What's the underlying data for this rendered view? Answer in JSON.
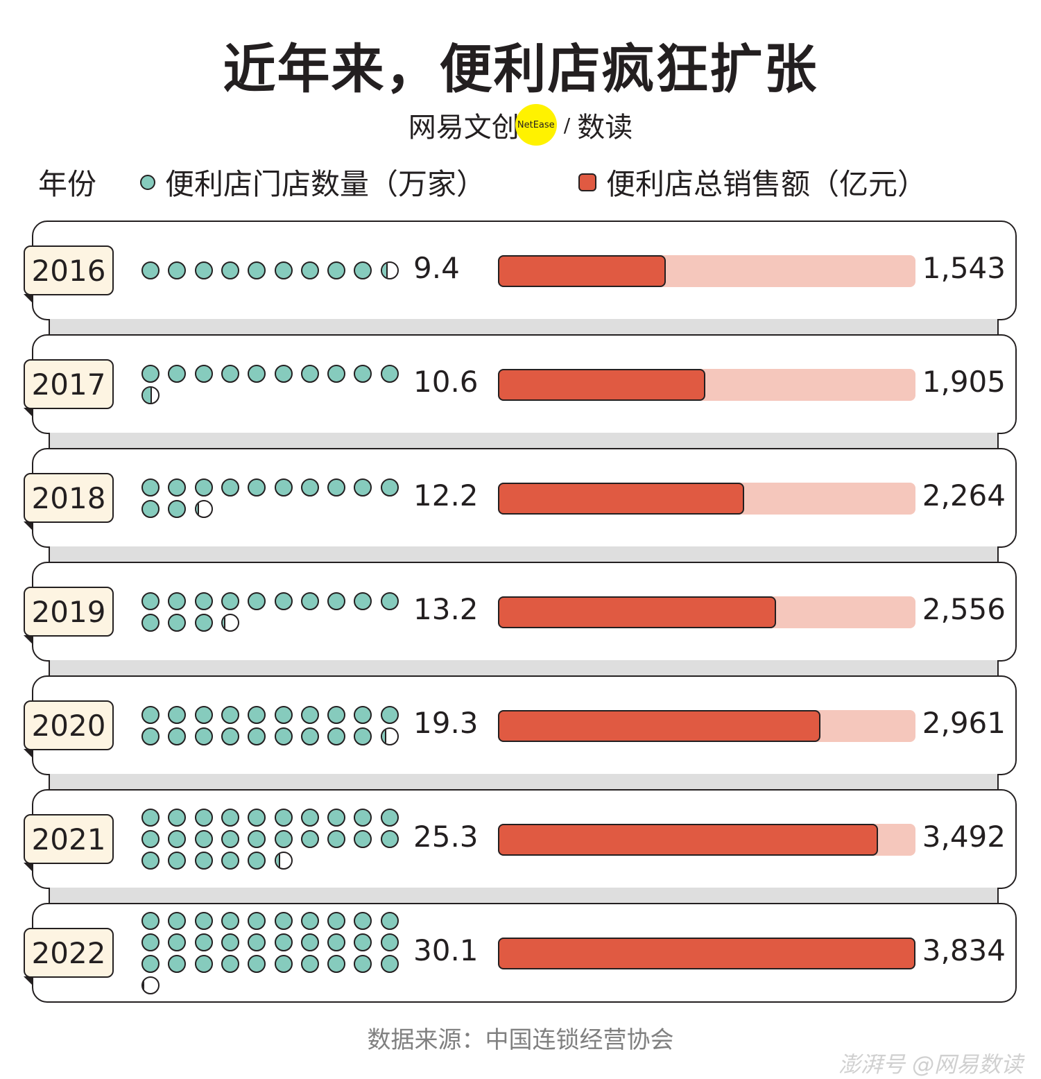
{
  "header": {
    "title": "近年来，便利店疯狂扩张",
    "brand_name": "网易文创",
    "brand_logo": "NetEase",
    "brand_separator": "/",
    "brand_sub": "数读"
  },
  "legend": {
    "year_label": "年份",
    "stores_label": "便利店门店数量（万家）",
    "sales_label": "便利店总销售额（亿元）"
  },
  "chart_data": {
    "type": "bar",
    "categories": [
      "2016",
      "2017",
      "2018",
      "2019",
      "2020",
      "2021",
      "2022"
    ],
    "series": [
      {
        "name": "便利店门店数量（万家）",
        "values": [
          9.4,
          10.6,
          12.2,
          13.2,
          19.3,
          25.3,
          30.1
        ],
        "labels": [
          "9.4",
          "10.6",
          "12.2",
          "13.2",
          "19.3",
          "25.3",
          "30.1"
        ],
        "unit_per_dot": 1
      },
      {
        "name": "便利店总销售额（亿元）",
        "values": [
          1543,
          1905,
          2264,
          2556,
          2961,
          3492,
          3834
        ],
        "labels": [
          "1,543",
          "1,905",
          "2,264",
          "2,556",
          "2,961",
          "3,492",
          "3,834"
        ],
        "bar_max": 3834
      }
    ],
    "colors": {
      "dot": "#86cbbd",
      "bar": "#e05a42",
      "bar_track": "#f5c7bc",
      "year_tag": "#fdf4e2"
    }
  },
  "footer": {
    "source": "数据来源：中国连锁经营协会",
    "watermark": "澎湃号 @网易数读"
  }
}
